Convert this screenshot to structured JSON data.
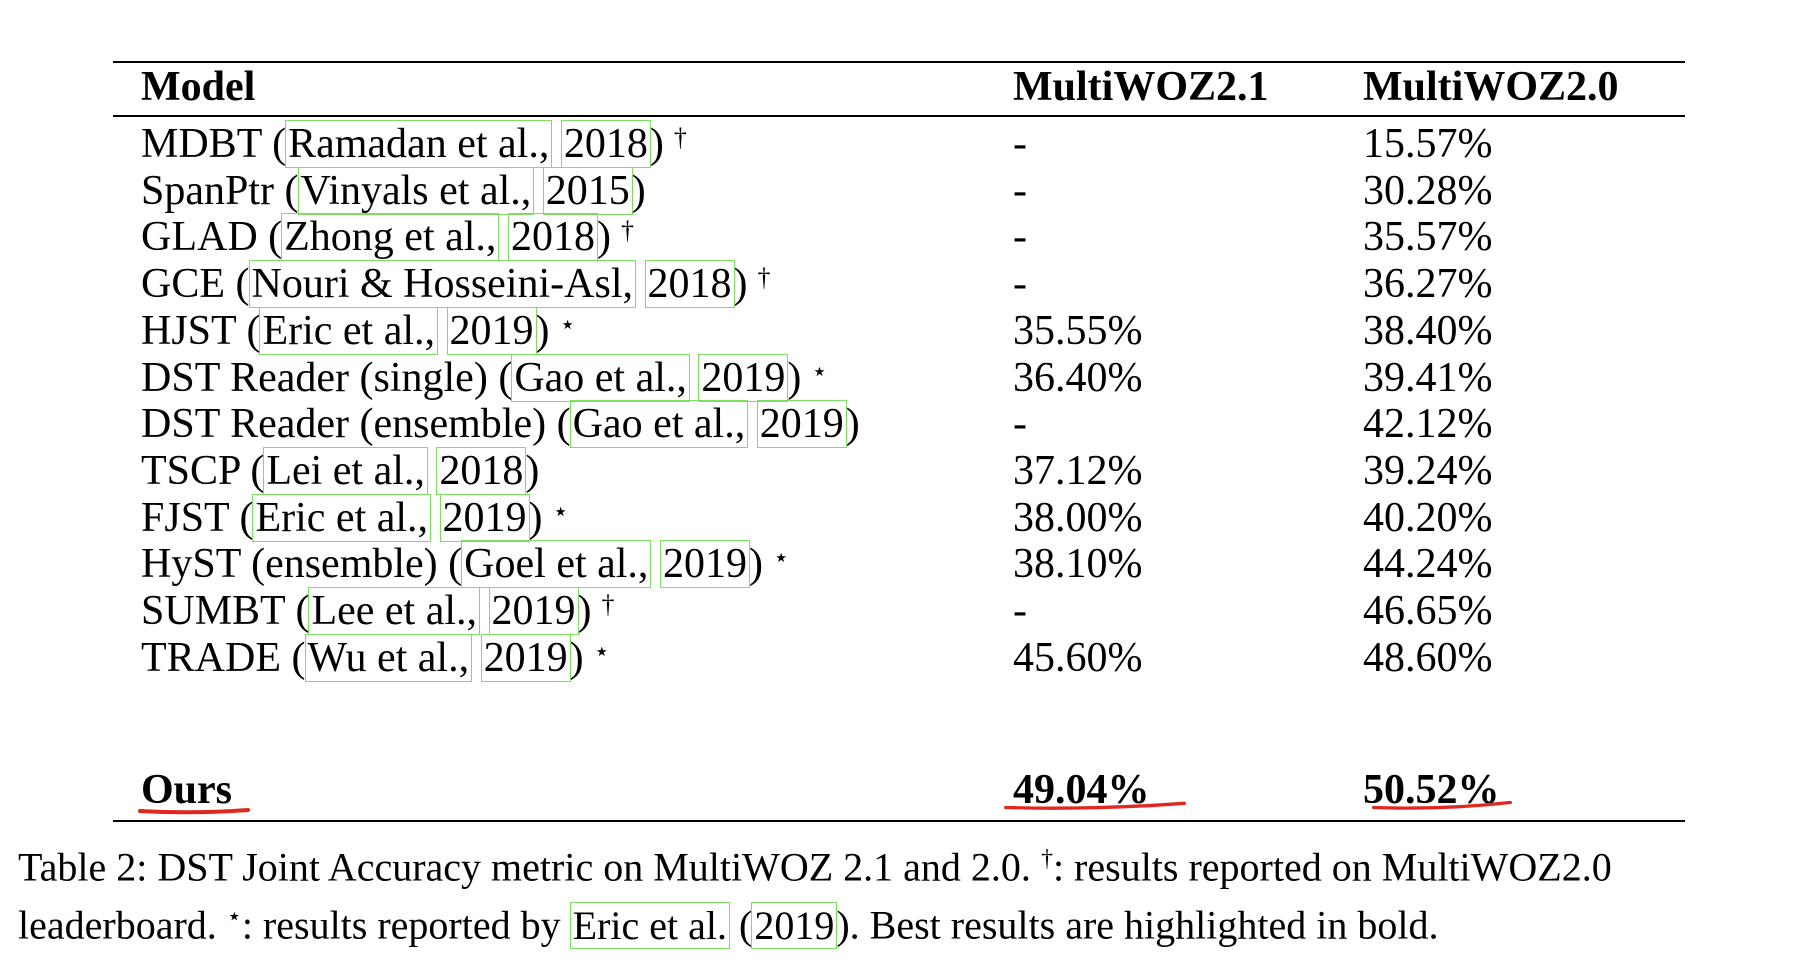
{
  "table": {
    "columns": [
      "Model",
      "MultiWOZ2.1",
      "MultiWOZ2.0"
    ],
    "rows": [
      {
        "model": "MDBT",
        "cite_author": "Ramadan et al.,",
        "cite_year": "2018",
        "mark": "†",
        "mwoz21": "-",
        "mwoz20": "15.57%"
      },
      {
        "model": "SpanPtr",
        "cite_author": "Vinyals et al.,",
        "cite_year": "2015",
        "mark": "",
        "mwoz21": "-",
        "mwoz20": "30.28%"
      },
      {
        "model": "GLAD",
        "cite_author": "Zhong et al.,",
        "cite_year": "2018",
        "mark": "†",
        "mwoz21": "-",
        "mwoz20": "35.57%"
      },
      {
        "model": "GCE",
        "cite_author": "Nouri & Hosseini-Asl,",
        "cite_year": "2018",
        "mark": "†",
        "mwoz21": "-",
        "mwoz20": "36.27%"
      },
      {
        "model": "HJST",
        "cite_author": "Eric et al.,",
        "cite_year": "2019",
        "mark": "⋆",
        "mwoz21": "35.55%",
        "mwoz20": "38.40%"
      },
      {
        "model": "DST Reader (single)",
        "cite_author": "Gao et al.,",
        "cite_year": "2019",
        "mark": "⋆",
        "mwoz21": "36.40%",
        "mwoz20": "39.41%"
      },
      {
        "model": "DST Reader (ensemble)",
        "cite_author": "Gao et al.,",
        "cite_year": "2019",
        "mark": "",
        "mwoz21": "-",
        "mwoz20": "42.12%"
      },
      {
        "model": "TSCP",
        "cite_author": "Lei et al.,",
        "cite_year": "2018",
        "mark": "",
        "mwoz21": "37.12%",
        "mwoz20": "39.24%"
      },
      {
        "model": "FJST",
        "cite_author": "Eric et al.,",
        "cite_year": "2019",
        "mark": "⋆",
        "mwoz21": "38.00%",
        "mwoz20": "40.20%"
      },
      {
        "model": "HyST (ensemble)",
        "cite_author": "Goel et al.,",
        "cite_year": "2019",
        "mark": "⋆",
        "mwoz21": "38.10%",
        "mwoz20": "44.24%"
      },
      {
        "model": "SUMBT",
        "cite_author": "Lee et al.,",
        "cite_year": "2019",
        "mark": "†",
        "mwoz21": "-",
        "mwoz20": "46.65%"
      },
      {
        "model": "TRADE",
        "cite_author": "Wu et al.,",
        "cite_year": "2019",
        "mark": "⋆",
        "mwoz21": "45.60%",
        "mwoz20": "48.60%"
      }
    ],
    "best_row": {
      "model": "Ours",
      "mwoz21": "49.04%",
      "mwoz20": "50.52%"
    }
  },
  "caption": {
    "lead": "Table 2: DST Joint Accuracy metric on MultiWOZ 2.1 and 2.0.",
    "dagger": "†",
    "dagger_text": ": results reported on MultiWOZ2.0",
    "line2_start": "leaderboard.",
    "star": "⋆",
    "star_text": ": results reported by",
    "cite_author": "Eric et al.",
    "cite_year": "2019",
    "tail": ". Best results are highlighted in bold."
  },
  "colors": {
    "citation_box": "#7ddf5f",
    "annotation_underline": "#e0281e"
  }
}
